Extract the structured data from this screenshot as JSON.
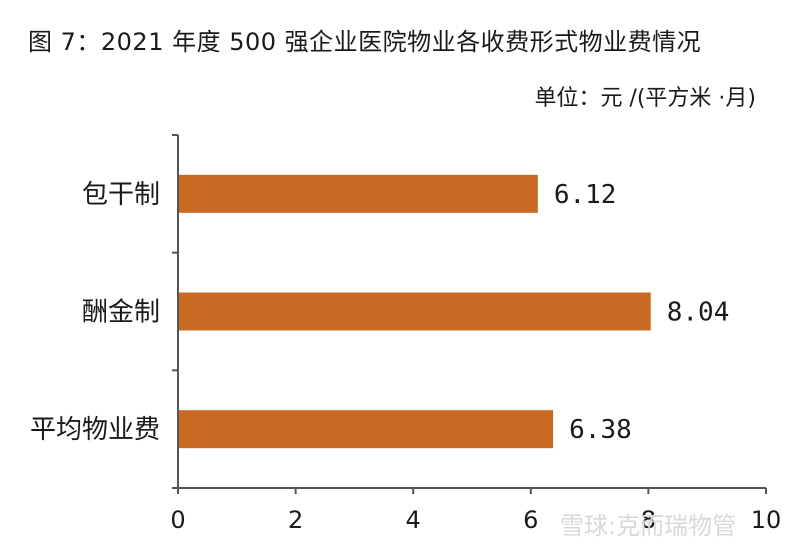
{
  "chart_data": {
    "type": "bar",
    "orientation": "horizontal",
    "title": "图 7：2021 年度 500 强企业医院物业各收费形式物业费情况",
    "unit": "单位：元 /(平方米 ·月)",
    "categories": [
      "包干制",
      "酬金制",
      "平均物业费"
    ],
    "values": [
      6.12,
      8.04,
      6.38
    ],
    "value_labels": [
      "6.12",
      "8.04",
      "6.38"
    ],
    "xlim": [
      0,
      10
    ],
    "xticks": [
      "0",
      "2",
      "4",
      "6",
      "8",
      "10"
    ],
    "bar_color": "#C96A24",
    "grid": false,
    "legend": "none"
  },
  "watermark": "雪球:克而瑞物管"
}
